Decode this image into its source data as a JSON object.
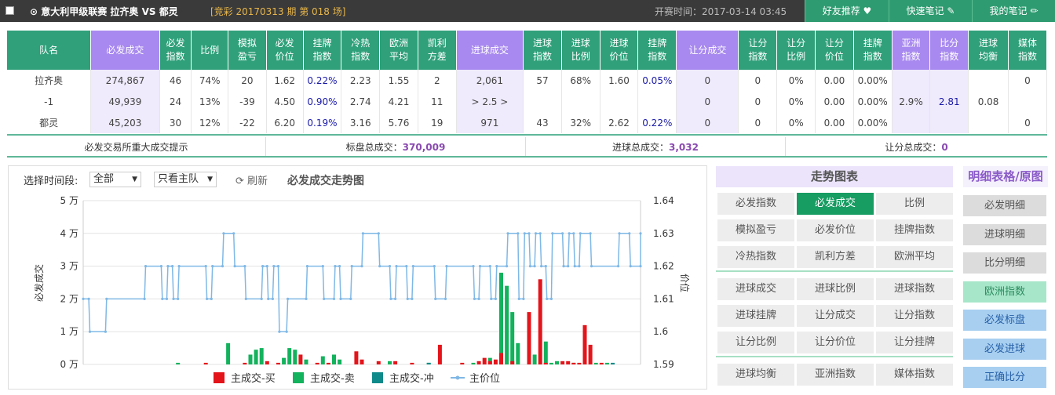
{
  "header": {
    "title": "⊙ 意大利甲级联赛  拉齐奥  VS 都灵",
    "issue": "[竞彩 20170313 期 第 018 场]",
    "kickoff_label": "开赛时间：2017-03-14 03:45",
    "buttons": {
      "friend": "好友推荐",
      "notes": "快速笔记",
      "my_notes": "我的笔记"
    }
  },
  "table": {
    "headers": [
      {
        "t": "队名",
        "c": ""
      },
      {
        "t": "必发成交",
        "c": "pur"
      },
      {
        "t": "必发指数",
        "c": ""
      },
      {
        "t": "比例",
        "c": ""
      },
      {
        "t": "模拟盈亏",
        "c": ""
      },
      {
        "t": "必发价位",
        "c": ""
      },
      {
        "t": "挂牌指数",
        "c": ""
      },
      {
        "t": "冷热指数",
        "c": ""
      },
      {
        "t": "欧洲平均",
        "c": ""
      },
      {
        "t": "凯利方差",
        "c": ""
      },
      {
        "t": "进球成交",
        "c": "pur"
      },
      {
        "t": "进球指数",
        "c": ""
      },
      {
        "t": "进球比例",
        "c": ""
      },
      {
        "t": "进球价位",
        "c": ""
      },
      {
        "t": "挂牌指数",
        "c": ""
      },
      {
        "t": "让分成交",
        "c": "pur"
      },
      {
        "t": "让分指数",
        "c": ""
      },
      {
        "t": "让分比例",
        "c": ""
      },
      {
        "t": "让分价位",
        "c": ""
      },
      {
        "t": "挂牌指数",
        "c": ""
      },
      {
        "t": "亚洲指数",
        "c": "pur"
      },
      {
        "t": "比分指数",
        "c": "pur"
      },
      {
        "t": "进球均衡",
        "c": ""
      },
      {
        "t": "媒体指数",
        "c": ""
      }
    ],
    "rows": [
      [
        "拉齐奥",
        "274,867",
        "46",
        "74%",
        "20",
        "1.62",
        "0.22%",
        "2.23",
        "1.55",
        "2",
        "2,061",
        "57",
        "68%",
        "1.60",
        "0.05%",
        "0",
        "0",
        "0%",
        "0.00",
        "0.00%",
        "",
        "",
        "",
        "0"
      ],
      [
        "-1",
        "49,939",
        "24",
        "13%",
        "-39",
        "4.50",
        "0.90%",
        "2.74",
        "4.21",
        "11",
        "> 2.5 >",
        "",
        "",
        "",
        "",
        "0",
        "0",
        "0%",
        "0.00",
        "0.00%",
        "2.9%",
        "2.81",
        "0.08",
        ""
      ],
      [
        "都灵",
        "45,203",
        "30",
        "12%",
        "-22",
        "6.20",
        "0.19%",
        "3.16",
        "5.76",
        "19",
        "971",
        "43",
        "32%",
        "2.62",
        "0.22%",
        "0",
        "0",
        "0%",
        "0.00",
        "0.00%",
        "",
        "",
        "",
        "0"
      ]
    ]
  },
  "summary": {
    "hint": "必发交易所重大成交提示",
    "main_label": "标盘总成交：",
    "main_value": "370,009",
    "goal_label": "进球总成交：",
    "goal_value": "3,032",
    "handicap_label": "让分总成交：",
    "handicap_value": "0"
  },
  "controls": {
    "period_label": "选择时间段:",
    "period_value": "全部",
    "team_value": "只看主队",
    "refresh": "刷新",
    "chart_title": "必发成交走势图"
  },
  "chart_data": {
    "type": "bar+line",
    "left_axis": {
      "label": "必发成交",
      "ticks": [
        "0 万",
        "1 万",
        "2 万",
        "3 万",
        "4 万",
        "5 万"
      ],
      "range": [
        0,
        50000
      ]
    },
    "right_axis": {
      "label": "价位",
      "ticks": [
        "1.59",
        "1.6",
        "1.61",
        "1.62",
        "1.63",
        "1.64"
      ],
      "range": [
        1.59,
        1.64
      ]
    },
    "legend": [
      "主成交-买",
      "主成交-卖",
      "主成交-冲",
      "主价位"
    ],
    "colors": {
      "buy": "#e4141b",
      "sell": "#13b25c",
      "flush": "#0f8a8a",
      "price": "#7fb8e6"
    },
    "buy": [
      [
        0.22,
        500
      ],
      [
        0.29,
        500
      ],
      [
        0.33,
        1000
      ],
      [
        0.35,
        500
      ],
      [
        0.39,
        3000
      ],
      [
        0.42,
        500
      ],
      [
        0.44,
        500
      ],
      [
        0.49,
        4000
      ],
      [
        0.5,
        1500
      ],
      [
        0.53,
        1000
      ],
      [
        0.56,
        1000
      ],
      [
        0.59,
        500
      ],
      [
        0.64,
        6000
      ],
      [
        0.68,
        500
      ],
      [
        0.71,
        1000
      ],
      [
        0.72,
        2000
      ],
      [
        0.73,
        1000
      ],
      [
        0.74,
        1500
      ],
      [
        0.75,
        3500
      ],
      [
        0.77,
        1000
      ],
      [
        0.8,
        16000
      ],
      [
        0.82,
        26000
      ],
      [
        0.83,
        500
      ],
      [
        0.86,
        1000
      ],
      [
        0.87,
        1000
      ],
      [
        0.88,
        500
      ],
      [
        0.89,
        500
      ],
      [
        0.9,
        12000
      ],
      [
        0.91,
        6000
      ],
      [
        0.93,
        500
      ]
    ],
    "sell": [
      [
        0.17,
        500
      ],
      [
        0.26,
        6500
      ],
      [
        0.3,
        3000
      ],
      [
        0.31,
        4500
      ],
      [
        0.32,
        5000
      ],
      [
        0.36,
        2000
      ],
      [
        0.37,
        5000
      ],
      [
        0.38,
        4500
      ],
      [
        0.4,
        1500
      ],
      [
        0.43,
        2500
      ],
      [
        0.45,
        3000
      ],
      [
        0.46,
        1500
      ],
      [
        0.5,
        500
      ],
      [
        0.55,
        1000
      ],
      [
        0.62,
        500
      ],
      [
        0.7,
        500
      ],
      [
        0.73,
        2000
      ],
      [
        0.75,
        28000
      ],
      [
        0.76,
        24000
      ],
      [
        0.77,
        16000
      ],
      [
        0.78,
        6500
      ],
      [
        0.8,
        3500
      ],
      [
        0.81,
        3000
      ],
      [
        0.83,
        7000
      ],
      [
        0.84,
        500
      ],
      [
        0.85,
        1000
      ],
      [
        0.88,
        500
      ],
      [
        0.92,
        500
      ],
      [
        0.94,
        500
      ]
    ],
    "flush": [
      [
        0.62,
        500
      ],
      [
        0.95,
        500
      ]
    ],
    "price": [
      [
        0.0,
        1.61
      ],
      [
        0.01,
        1.61
      ],
      [
        0.012,
        1.6
      ],
      [
        0.04,
        1.6
      ],
      [
        0.042,
        1.61
      ],
      [
        0.11,
        1.61
      ],
      [
        0.112,
        1.62
      ],
      [
        0.14,
        1.62
      ],
      [
        0.142,
        1.61
      ],
      [
        0.15,
        1.61
      ],
      [
        0.152,
        1.62
      ],
      [
        0.16,
        1.62
      ],
      [
        0.162,
        1.61
      ],
      [
        0.17,
        1.61
      ],
      [
        0.172,
        1.62
      ],
      [
        0.22,
        1.62
      ],
      [
        0.222,
        1.61
      ],
      [
        0.23,
        1.61
      ],
      [
        0.232,
        1.62
      ],
      [
        0.25,
        1.62
      ],
      [
        0.252,
        1.63
      ],
      [
        0.27,
        1.63
      ],
      [
        0.272,
        1.62
      ],
      [
        0.29,
        1.62
      ],
      [
        0.292,
        1.61
      ],
      [
        0.32,
        1.61
      ],
      [
        0.322,
        1.62
      ],
      [
        0.33,
        1.62
      ],
      [
        0.332,
        1.61
      ],
      [
        0.34,
        1.61
      ],
      [
        0.342,
        1.62
      ],
      [
        0.35,
        1.62
      ],
      [
        0.352,
        1.6
      ],
      [
        0.365,
        1.6
      ],
      [
        0.367,
        1.61
      ],
      [
        0.4,
        1.61
      ],
      [
        0.402,
        1.62
      ],
      [
        0.43,
        1.62
      ],
      [
        0.432,
        1.61
      ],
      [
        0.45,
        1.61
      ],
      [
        0.452,
        1.62
      ],
      [
        0.46,
        1.62
      ],
      [
        0.462,
        1.61
      ],
      [
        0.48,
        1.61
      ],
      [
        0.482,
        1.62
      ],
      [
        0.5,
        1.62
      ],
      [
        0.502,
        1.63
      ],
      [
        0.53,
        1.63
      ],
      [
        0.532,
        1.62
      ],
      [
        0.55,
        1.62
      ],
      [
        0.552,
        1.61
      ],
      [
        0.56,
        1.61
      ],
      [
        0.562,
        1.62
      ],
      [
        0.58,
        1.62
      ],
      [
        0.582,
        1.61
      ],
      [
        0.59,
        1.61
      ],
      [
        0.592,
        1.62
      ],
      [
        0.63,
        1.62
      ],
      [
        0.632,
        1.61
      ],
      [
        0.65,
        1.61
      ],
      [
        0.652,
        1.62
      ],
      [
        0.7,
        1.62
      ],
      [
        0.702,
        1.61
      ],
      [
        0.71,
        1.61
      ],
      [
        0.712,
        1.62
      ],
      [
        0.73,
        1.62
      ],
      [
        0.732,
        1.61
      ],
      [
        0.74,
        1.61
      ],
      [
        0.742,
        1.62
      ],
      [
        0.76,
        1.62
      ],
      [
        0.762,
        1.63
      ],
      [
        0.78,
        1.63
      ],
      [
        0.782,
        1.61
      ],
      [
        0.79,
        1.61
      ],
      [
        0.792,
        1.63
      ],
      [
        0.8,
        1.63
      ],
      [
        0.802,
        1.62
      ],
      [
        0.81,
        1.62
      ],
      [
        0.812,
        1.63
      ],
      [
        0.82,
        1.63
      ],
      [
        0.822,
        1.62
      ],
      [
        0.83,
        1.62
      ],
      [
        0.832,
        1.61
      ],
      [
        0.84,
        1.61
      ],
      [
        0.842,
        1.63
      ],
      [
        0.86,
        1.63
      ],
      [
        0.862,
        1.62
      ],
      [
        0.87,
        1.62
      ],
      [
        0.872,
        1.63
      ],
      [
        0.88,
        1.63
      ],
      [
        0.882,
        1.62
      ],
      [
        0.89,
        1.62
      ],
      [
        0.892,
        1.63
      ],
      [
        0.91,
        1.63
      ],
      [
        0.912,
        1.62
      ],
      [
        0.96,
        1.62
      ],
      [
        0.962,
        1.63
      ],
      [
        0.98,
        1.63
      ],
      [
        0.982,
        1.62
      ],
      [
        1.0,
        1.62
      ],
      [
        1.0,
        1.63
      ]
    ]
  },
  "trend_panel": {
    "title": "走势图表",
    "groups": [
      [
        [
          "必发指数",
          "必发成交",
          "比例"
        ],
        [
          "模拟盈亏",
          "必发价位",
          "挂牌指数"
        ],
        [
          "冷热指数",
          "凯利方差",
          "欧洲平均"
        ]
      ],
      [
        [
          "进球成交",
          "进球比例",
          "进球指数"
        ],
        [
          "进球挂牌",
          "让分成交",
          "让分指数"
        ],
        [
          "让分比例",
          "让分价位",
          "让分挂牌"
        ]
      ],
      [
        [
          "进球均衡",
          "亚洲指数",
          "媒体指数"
        ]
      ]
    ],
    "active": "必发成交"
  },
  "detail_panel": {
    "title": "明细表格/原图",
    "buttons": [
      "必发明细",
      "进球明细",
      "比分明细",
      "欧洲指数",
      "必发标盘",
      "必发进球",
      "正确比分"
    ]
  }
}
